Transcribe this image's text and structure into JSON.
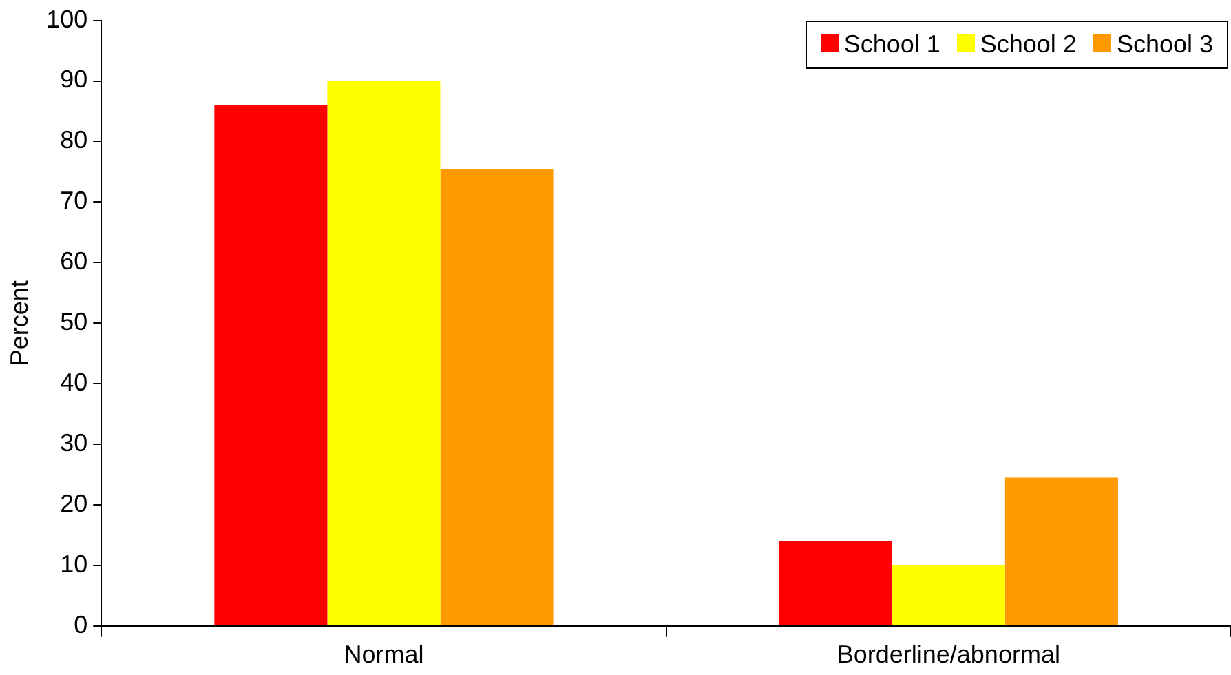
{
  "chart_data": {
    "type": "bar",
    "ylabel": "Percent",
    "categories": [
      "Normal",
      "Borderline/abnormal"
    ],
    "series": [
      {
        "name": "School 1",
        "color": "#ff0000",
        "values": [
          86,
          14
        ]
      },
      {
        "name": "School 2",
        "color": "#ffff00",
        "values": [
          90,
          10
        ]
      },
      {
        "name": "School 3",
        "color": "#ff9900",
        "values": [
          75.5,
          24.5
        ]
      }
    ],
    "ylim": [
      0,
      100
    ],
    "yticks": [
      0,
      10,
      20,
      30,
      40,
      50,
      60,
      70,
      80,
      90,
      100
    ],
    "grid": false,
    "legend": "top right"
  }
}
